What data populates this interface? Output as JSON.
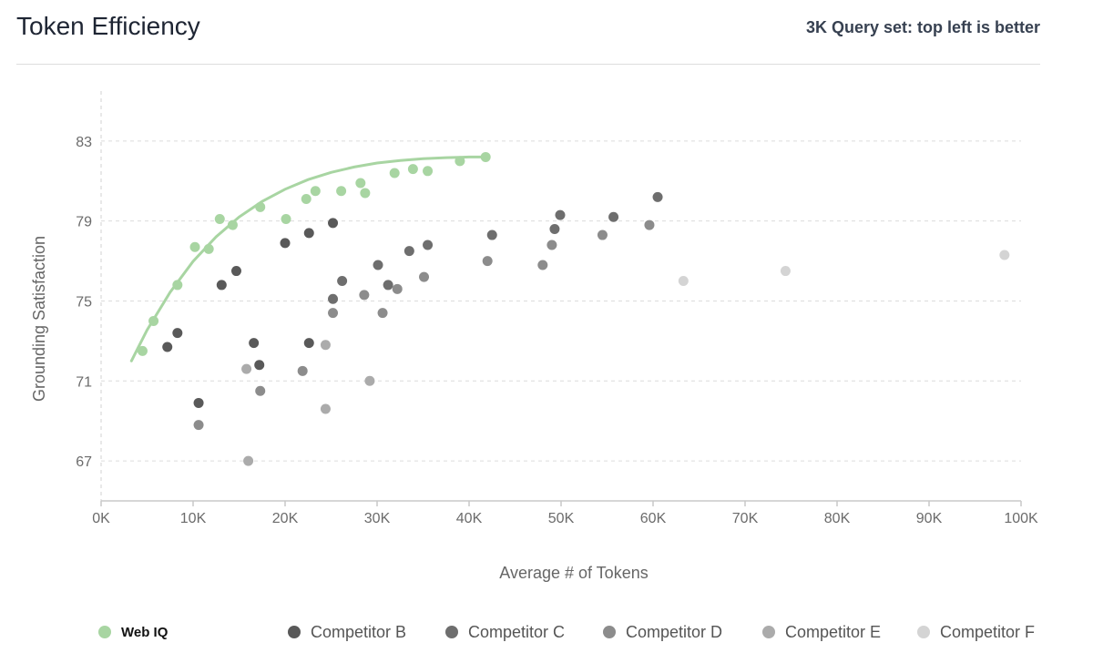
{
  "header": {
    "title": "Token Efficiency",
    "subtitle": "3K Query set: top left is better"
  },
  "chart_data": {
    "type": "scatter",
    "title": "Token Efficiency",
    "subtitle": "3K Query set: top left is better",
    "xlabel": "Average # of Tokens",
    "ylabel": "Grounding Satisfaction",
    "xlim": [
      0,
      100000
    ],
    "ylim": [
      65,
      85.5
    ],
    "x_ticks": [
      0,
      10000,
      20000,
      30000,
      40000,
      50000,
      60000,
      70000,
      80000,
      90000,
      100000
    ],
    "x_tick_labels": [
      "0K",
      "10K",
      "20K",
      "30K",
      "40K",
      "50K",
      "60K",
      "70K",
      "80K",
      "90K",
      "100K"
    ],
    "y_ticks": [
      67,
      71,
      75,
      79,
      83
    ],
    "y_tick_labels": [
      "67",
      "71",
      "75",
      "79",
      "83"
    ],
    "grid": "horizontal dashed",
    "legend_position": "bottom",
    "series": [
      {
        "name": "Web IQ",
        "color": "#a8d5a2",
        "points": [
          [
            4500,
            72.5
          ],
          [
            5700,
            74.0
          ],
          [
            8300,
            75.8
          ],
          [
            10200,
            77.7
          ],
          [
            11700,
            77.6
          ],
          [
            12900,
            79.1
          ],
          [
            14300,
            78.8
          ],
          [
            17300,
            79.7
          ],
          [
            20100,
            79.1
          ],
          [
            22300,
            80.1
          ],
          [
            23300,
            80.5
          ],
          [
            26100,
            80.5
          ],
          [
            28200,
            80.9
          ],
          [
            28700,
            80.4
          ],
          [
            31900,
            81.4
          ],
          [
            33900,
            81.6
          ],
          [
            35500,
            81.5
          ],
          [
            39000,
            82.0
          ],
          [
            41800,
            82.2
          ]
        ],
        "trendline": [
          [
            3300,
            72.0
          ],
          [
            5000,
            73.55
          ],
          [
            7500,
            75.44
          ],
          [
            10000,
            76.98
          ],
          [
            12500,
            78.21
          ],
          [
            15000,
            79.2
          ],
          [
            17500,
            79.98
          ],
          [
            20000,
            80.59
          ],
          [
            22500,
            81.07
          ],
          [
            25000,
            81.43
          ],
          [
            27500,
            81.7
          ],
          [
            30000,
            81.9
          ],
          [
            32500,
            82.03
          ],
          [
            35000,
            82.12
          ],
          [
            37500,
            82.17
          ],
          [
            40000,
            82.2
          ],
          [
            42000,
            82.2
          ]
        ]
      },
      {
        "name": "Competitor B",
        "color": "#595959",
        "points": [
          [
            7200,
            72.7
          ],
          [
            8300,
            73.4
          ],
          [
            10600,
            69.9
          ],
          [
            13100,
            75.8
          ],
          [
            14700,
            76.5
          ],
          [
            16600,
            72.9
          ],
          [
            17200,
            71.8
          ],
          [
            20000,
            77.9
          ],
          [
            22600,
            78.4
          ],
          [
            22600,
            72.9
          ],
          [
            25200,
            78.9
          ]
        ]
      },
      {
        "name": "Competitor C",
        "color": "#6e6e6e",
        "points": [
          [
            25200,
            75.1
          ],
          [
            26200,
            76.0
          ],
          [
            30100,
            76.8
          ],
          [
            31200,
            75.8
          ],
          [
            33500,
            77.5
          ],
          [
            35500,
            77.8
          ],
          [
            42500,
            78.3
          ],
          [
            49300,
            78.6
          ],
          [
            49900,
            79.3
          ],
          [
            55700,
            79.2
          ],
          [
            60500,
            80.2
          ]
        ]
      },
      {
        "name": "Competitor D",
        "color": "#8c8c8c",
        "points": [
          [
            10600,
            68.8
          ],
          [
            17300,
            70.5
          ],
          [
            21900,
            71.5
          ],
          [
            25200,
            74.4
          ],
          [
            28600,
            75.3
          ],
          [
            30600,
            74.4
          ],
          [
            32200,
            75.6
          ],
          [
            35100,
            76.2
          ],
          [
            42000,
            77.0
          ],
          [
            48000,
            76.8
          ],
          [
            49000,
            77.8
          ],
          [
            54500,
            78.3
          ],
          [
            59600,
            78.8
          ]
        ]
      },
      {
        "name": "Competitor E",
        "color": "#ababab",
        "points": [
          [
            15800,
            71.6
          ],
          [
            16000,
            67.0
          ],
          [
            24400,
            72.8
          ],
          [
            24400,
            69.6
          ],
          [
            29200,
            71.0
          ]
        ]
      },
      {
        "name": "Competitor F",
        "color": "#d4d4d4",
        "points": [
          [
            63300,
            76.0
          ],
          [
            74400,
            76.5
          ],
          [
            98200,
            77.3
          ]
        ]
      }
    ]
  }
}
